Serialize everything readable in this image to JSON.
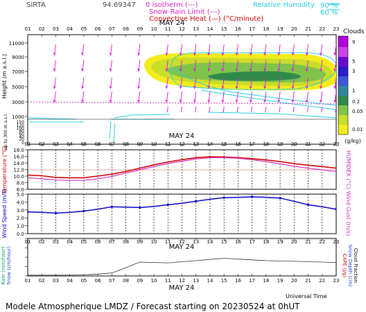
{
  "header": {
    "station": "SIRTA",
    "station_code": "94.69347",
    "legend_isotherm": "0 isotherm (---)",
    "legend_snow_rain": "Snow-Rain Limit (---)",
    "legend_convective": "Convective Heat (—) (°C/minute)",
    "legend_rh_label": "Relative Humidity",
    "legend_rh_90": "90 %",
    "legend_rh_60": "60 %"
  },
  "hours": [
    "01",
    "02",
    "03",
    "04",
    "05",
    "06",
    "07",
    "08",
    "09",
    "10",
    "11",
    "12",
    "13",
    "14",
    "15",
    "16",
    "17",
    "18",
    "19",
    "20",
    "21",
    "22",
    "23"
  ],
  "date_label": "MAY 24",
  "footer": {
    "universal_time": "Universal Time",
    "title": "Modele Atmospherique LMDZ / Forecast starting on 20230524 at 0hUT"
  },
  "chart_data": [
    {
      "type": "heatmap",
      "panel": "clouds",
      "title": "Clouds",
      "ylabel": "Height (m a.s.l.)",
      "ylabel_lower": "Up to 300 m a.s.l.",
      "colorbar_label": "(g/kg)",
      "colorbar_ticks": [
        "9",
        "5",
        "3",
        "1",
        "0.2",
        "0.05",
        "0.01"
      ],
      "y_ticks_upper": [
        "11000",
        "9000",
        "7000",
        "5000",
        "3000",
        "1000"
      ],
      "y_ticks_lower": [
        "150",
        "120",
        "100",
        "80",
        "60",
        "40",
        "20",
        "0"
      ],
      "isotherm_height_m": 2800,
      "isotherm_marker_hours": [
        "09",
        "21"
      ],
      "rh_contour_labels": [
        "90",
        "60"
      ]
    },
    {
      "type": "line",
      "panel": "temperature",
      "ylabel": "Temperature (°C)",
      "ylabel_right": "HUMIDEX (°C)",
      "ylim": [
        6,
        18
      ],
      "y_ticks": [
        "18.0",
        "16.0",
        "14.0",
        "12.0",
        "10.0",
        "8.0",
        "6.0"
      ],
      "series": [
        {
          "name": "Temperature",
          "color": "#d00000",
          "values": [
            10.3,
            10.1,
            9.6,
            9.5,
            9.5,
            10.0,
            10.6,
            11.4,
            12.4,
            13.4,
            14.3,
            15.0,
            15.6,
            15.9,
            15.8,
            15.6,
            15.3,
            14.9,
            14.4,
            13.8,
            13.3,
            12.9,
            12.4
          ]
        },
        {
          "name": "Humidex",
          "color": "#d030c0",
          "values": [
            9.5,
            9.2,
            8.8,
            8.7,
            8.7,
            9.2,
            9.9,
            10.9,
            11.9,
            12.9,
            13.8,
            14.5,
            15.2,
            15.6,
            15.6,
            15.4,
            15.0,
            14.4,
            13.7,
            13.0,
            12.4,
            11.9,
            11.4
          ]
        }
      ]
    },
    {
      "type": "line",
      "panel": "wind",
      "ylabel": "Wind Speed (m/s)",
      "ylabel_right": "Wind Gust (m/s)",
      "ylim": [
        0,
        5
      ],
      "y_ticks": [
        "5.0",
        "4.0",
        "3.0",
        "2.0",
        "1.0",
        "0.0"
      ],
      "series": [
        {
          "name": "Wind Speed",
          "color": "#0000c0",
          "values": [
            2.75,
            2.7,
            2.6,
            2.7,
            2.85,
            3.1,
            3.4,
            3.35,
            3.3,
            3.45,
            3.65,
            3.85,
            4.1,
            4.35,
            4.55,
            4.6,
            4.65,
            4.6,
            4.5,
            4.1,
            3.65,
            3.4,
            3.1
          ]
        }
      ]
    },
    {
      "type": "line",
      "panel": "precipitation",
      "ylabel": "Rain (mm/hour)",
      "ylabel_2": "Snow (cm/hour)",
      "ylabel_right": "CAPE (J/g)",
      "ylabel_right_2": "Snow Depth (cm)",
      "ylabel_right_3": "Cloud Fraction",
      "ylim": [
        0,
        1
      ],
      "series": [
        {
          "name": "Cloud Fraction",
          "color": "#303030",
          "values": [
            0.02,
            0.02,
            0.02,
            0.02,
            0.03,
            0.05,
            0.08,
            0.22,
            0.37,
            0.36,
            0.35,
            0.38,
            0.41,
            0.44,
            0.47,
            0.45,
            0.43,
            0.41,
            0.4,
            0.39,
            0.38,
            0.37,
            0.36
          ]
        }
      ]
    }
  ]
}
